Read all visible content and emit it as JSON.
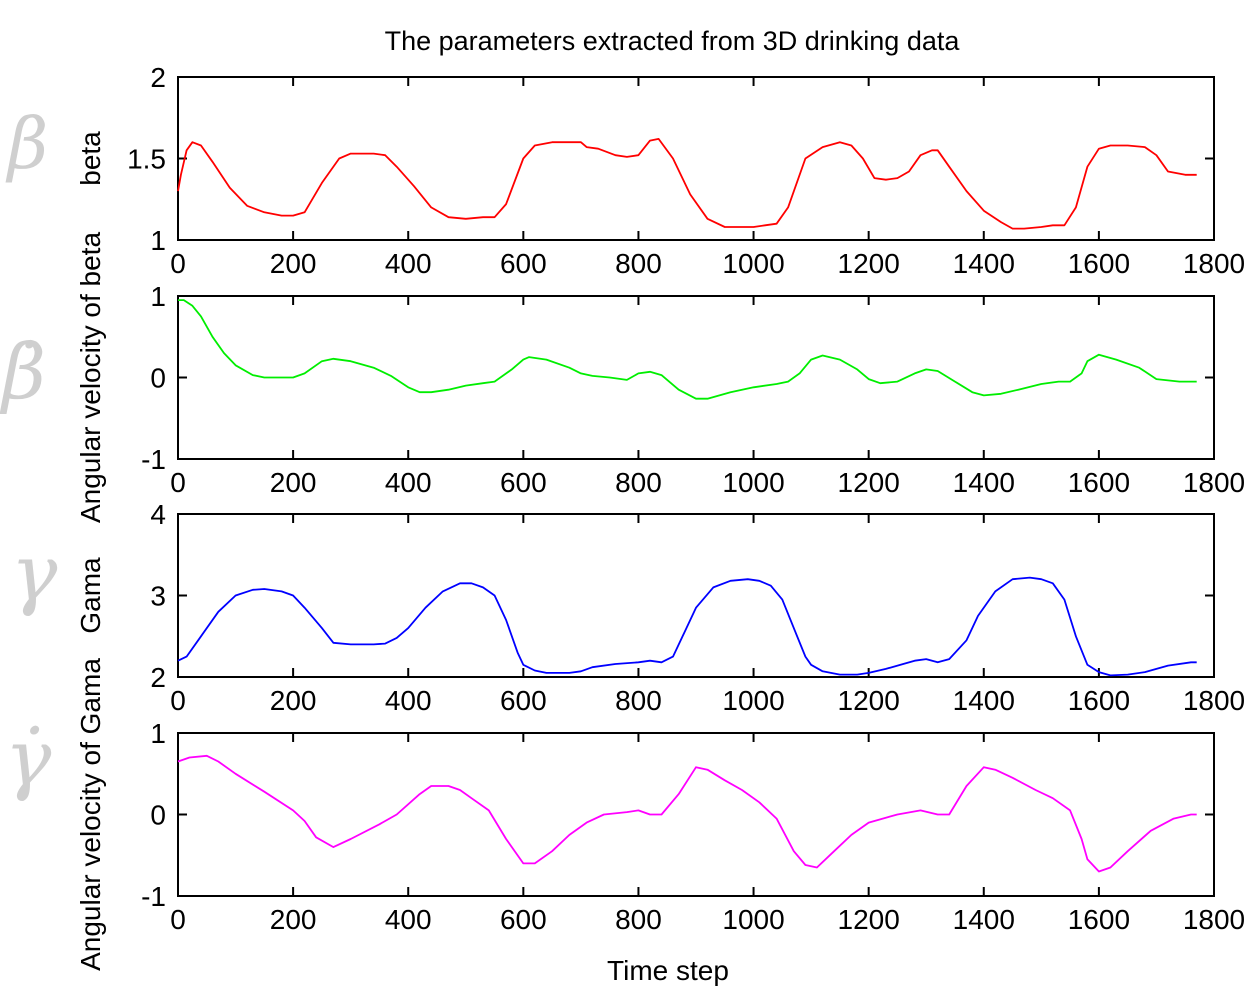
{
  "title": "The parameters extracted from 3D drinking data",
  "xlabel": "Time step",
  "chart_data": [
    {
      "type": "line",
      "ylabel": "beta",
      "symbol": "β",
      "xlim": [
        0,
        1800
      ],
      "ylim": [
        1,
        2
      ],
      "xticks": [
        "0",
        "200",
        "400",
        "600",
        "800",
        "1000",
        "1200",
        "1400",
        "1600",
        "1800"
      ],
      "yticks": [
        "1",
        "1.5",
        "2"
      ],
      "color": "#ff0000",
      "x": [
        0,
        5,
        15,
        25,
        40,
        60,
        90,
        120,
        150,
        180,
        200,
        220,
        250,
        280,
        300,
        320,
        340,
        360,
        380,
        410,
        440,
        470,
        500,
        530,
        550,
        570,
        600,
        620,
        650,
        680,
        700,
        710,
        730,
        760,
        780,
        800,
        820,
        835,
        860,
        890,
        920,
        950,
        980,
        1000,
        1020,
        1040,
        1060,
        1090,
        1120,
        1150,
        1170,
        1190,
        1210,
        1230,
        1250,
        1270,
        1290,
        1310,
        1320,
        1340,
        1370,
        1400,
        1430,
        1450,
        1470,
        1500,
        1520,
        1540,
        1560,
        1580,
        1600,
        1620,
        1650,
        1680,
        1700,
        1720,
        1750,
        1770
      ],
      "y": [
        1.3,
        1.4,
        1.55,
        1.6,
        1.58,
        1.48,
        1.32,
        1.21,
        1.17,
        1.15,
        1.15,
        1.17,
        1.35,
        1.5,
        1.53,
        1.53,
        1.53,
        1.52,
        1.45,
        1.33,
        1.2,
        1.14,
        1.13,
        1.14,
        1.14,
        1.22,
        1.5,
        1.58,
        1.6,
        1.6,
        1.6,
        1.57,
        1.56,
        1.52,
        1.51,
        1.52,
        1.61,
        1.62,
        1.5,
        1.28,
        1.13,
        1.08,
        1.08,
        1.08,
        1.09,
        1.1,
        1.2,
        1.5,
        1.57,
        1.6,
        1.58,
        1.5,
        1.38,
        1.37,
        1.38,
        1.42,
        1.52,
        1.55,
        1.55,
        1.45,
        1.3,
        1.18,
        1.11,
        1.07,
        1.07,
        1.08,
        1.09,
        1.09,
        1.2,
        1.45,
        1.56,
        1.58,
        1.58,
        1.57,
        1.52,
        1.42,
        1.4,
        1.4
      ]
    },
    {
      "type": "line",
      "ylabel": "Angular velocity of beta",
      "symbol": "β̇",
      "xlim": [
        0,
        1800
      ],
      "ylim": [
        -1,
        1
      ],
      "xticks": [
        "0",
        "200",
        "400",
        "600",
        "800",
        "1000",
        "1200",
        "1400",
        "1600",
        "1800"
      ],
      "yticks": [
        "-1",
        "0",
        "1"
      ],
      "color": "#00ee00",
      "x": [
        0,
        10,
        25,
        40,
        60,
        80,
        100,
        130,
        150,
        180,
        200,
        220,
        250,
        270,
        300,
        340,
        370,
        400,
        420,
        440,
        470,
        500,
        530,
        550,
        580,
        600,
        610,
        640,
        680,
        700,
        720,
        750,
        780,
        800,
        820,
        840,
        870,
        900,
        920,
        960,
        1000,
        1040,
        1060,
        1080,
        1100,
        1120,
        1150,
        1180,
        1200,
        1220,
        1250,
        1280,
        1300,
        1320,
        1350,
        1380,
        1400,
        1430,
        1460,
        1500,
        1530,
        1550,
        1570,
        1580,
        1600,
        1630,
        1670,
        1700,
        1740,
        1770
      ],
      "y": [
        0.95,
        0.95,
        0.88,
        0.75,
        0.5,
        0.3,
        0.15,
        0.03,
        0.0,
        0.0,
        0.0,
        0.05,
        0.2,
        0.23,
        0.2,
        0.12,
        0.02,
        -0.12,
        -0.18,
        -0.18,
        -0.15,
        -0.1,
        -0.07,
        -0.05,
        0.1,
        0.22,
        0.25,
        0.22,
        0.12,
        0.05,
        0.02,
        0.0,
        -0.03,
        0.05,
        0.07,
        0.03,
        -0.15,
        -0.26,
        -0.26,
        -0.18,
        -0.12,
        -0.08,
        -0.05,
        0.05,
        0.22,
        0.27,
        0.22,
        0.1,
        -0.02,
        -0.07,
        -0.05,
        0.05,
        0.1,
        0.08,
        -0.05,
        -0.18,
        -0.22,
        -0.2,
        -0.15,
        -0.08,
        -0.05,
        -0.05,
        0.05,
        0.2,
        0.28,
        0.22,
        0.12,
        -0.02,
        -0.05,
        -0.05
      ]
    },
    {
      "type": "line",
      "ylabel": "Gama",
      "symbol": "γ",
      "xlim": [
        0,
        1800
      ],
      "ylim": [
        2,
        4
      ],
      "xticks": [
        "0",
        "200",
        "400",
        "600",
        "800",
        "1000",
        "1200",
        "1400",
        "1600",
        "1800"
      ],
      "yticks": [
        "2",
        "3",
        "4"
      ],
      "color": "#0000ff",
      "x": [
        0,
        15,
        40,
        70,
        100,
        130,
        150,
        180,
        200,
        220,
        250,
        270,
        300,
        340,
        360,
        380,
        400,
        430,
        460,
        490,
        510,
        530,
        550,
        570,
        590,
        600,
        620,
        640,
        660,
        680,
        700,
        720,
        760,
        800,
        820,
        840,
        860,
        880,
        900,
        930,
        960,
        990,
        1010,
        1030,
        1050,
        1070,
        1090,
        1100,
        1120,
        1150,
        1180,
        1200,
        1230,
        1260,
        1280,
        1300,
        1320,
        1340,
        1370,
        1390,
        1420,
        1450,
        1480,
        1500,
        1520,
        1540,
        1560,
        1580,
        1600,
        1620,
        1650,
        1680,
        1700,
        1720,
        1760,
        1770
      ],
      "y": [
        2.2,
        2.25,
        2.5,
        2.8,
        3.0,
        3.07,
        3.08,
        3.05,
        3.0,
        2.85,
        2.6,
        2.42,
        2.4,
        2.4,
        2.41,
        2.48,
        2.6,
        2.85,
        3.05,
        3.15,
        3.15,
        3.1,
        3.0,
        2.7,
        2.3,
        2.15,
        2.08,
        2.05,
        2.05,
        2.05,
        2.07,
        2.12,
        2.16,
        2.18,
        2.2,
        2.18,
        2.25,
        2.55,
        2.85,
        3.1,
        3.18,
        3.2,
        3.18,
        3.12,
        2.95,
        2.6,
        2.25,
        2.15,
        2.07,
        2.03,
        2.03,
        2.05,
        2.1,
        2.16,
        2.2,
        2.22,
        2.18,
        2.22,
        2.45,
        2.75,
        3.05,
        3.2,
        3.22,
        3.2,
        3.15,
        2.95,
        2.5,
        2.15,
        2.06,
        2.02,
        2.03,
        2.06,
        2.1,
        2.14,
        2.18,
        2.18
      ]
    },
    {
      "type": "line",
      "ylabel": "Angular velocity of Gama",
      "symbol": "γ̇",
      "xlim": [
        0,
        1800
      ],
      "ylim": [
        -1,
        1
      ],
      "xticks": [
        "0",
        "200",
        "400",
        "600",
        "800",
        "1000",
        "1200",
        "1400",
        "1600",
        "1800"
      ],
      "yticks": [
        "-1",
        "0",
        "1"
      ],
      "color": "#ff00ff",
      "x": [
        0,
        20,
        50,
        70,
        100,
        150,
        200,
        220,
        240,
        270,
        300,
        350,
        380,
        420,
        440,
        470,
        490,
        510,
        540,
        570,
        600,
        620,
        650,
        680,
        710,
        740,
        780,
        800,
        820,
        840,
        870,
        900,
        920,
        950,
        980,
        1010,
        1040,
        1070,
        1090,
        1110,
        1140,
        1170,
        1200,
        1250,
        1290,
        1320,
        1340,
        1370,
        1400,
        1420,
        1450,
        1490,
        1520,
        1550,
        1570,
        1580,
        1600,
        1620,
        1650,
        1690,
        1730,
        1760,
        1770
      ],
      "y": [
        0.65,
        0.7,
        0.72,
        0.65,
        0.5,
        0.28,
        0.05,
        -0.08,
        -0.28,
        -0.4,
        -0.3,
        -0.12,
        0.0,
        0.25,
        0.35,
        0.35,
        0.3,
        0.2,
        0.05,
        -0.3,
        -0.6,
        -0.6,
        -0.45,
        -0.25,
        -0.1,
        0.0,
        0.03,
        0.05,
        0.0,
        0.0,
        0.25,
        0.58,
        0.55,
        0.42,
        0.3,
        0.15,
        -0.05,
        -0.45,
        -0.62,
        -0.65,
        -0.45,
        -0.25,
        -0.1,
        0.0,
        0.05,
        0.0,
        0.0,
        0.35,
        0.58,
        0.55,
        0.45,
        0.3,
        0.2,
        0.05,
        -0.3,
        -0.55,
        -0.7,
        -0.65,
        -0.45,
        -0.2,
        -0.05,
        0.0,
        0.0
      ]
    }
  ]
}
